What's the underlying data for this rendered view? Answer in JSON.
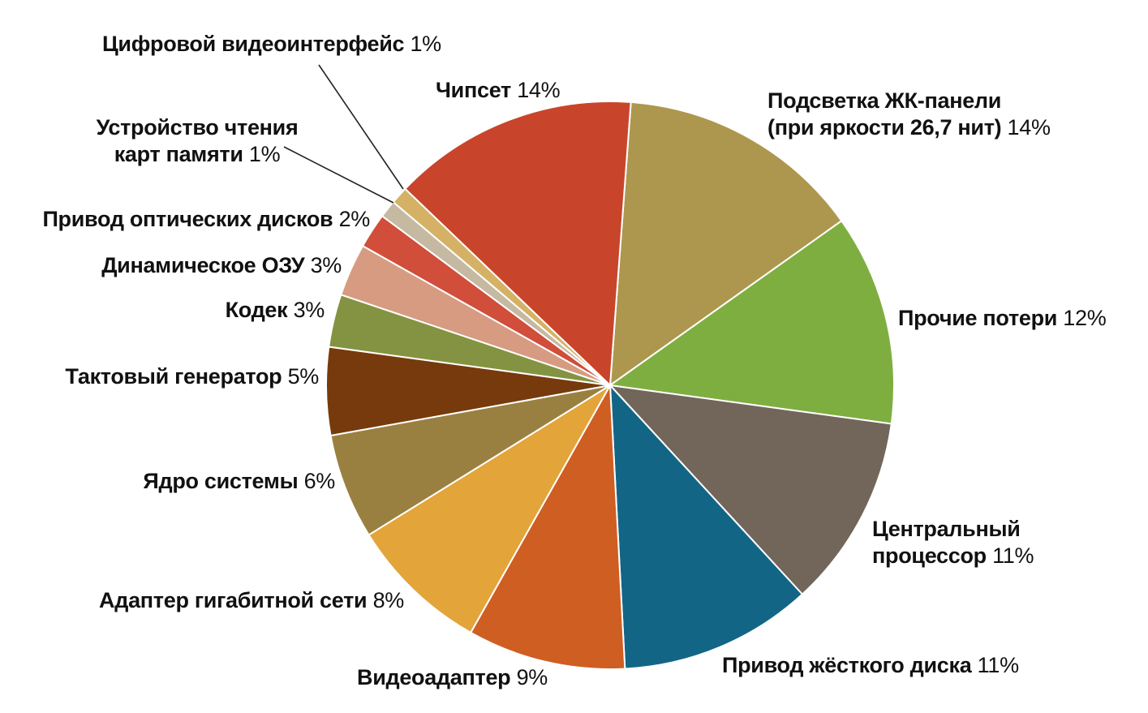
{
  "chart_data": {
    "type": "pie",
    "title": "",
    "start_angle_deg": 4.2,
    "direction": "clockwise",
    "slices": [
      {
        "name": "Подсветка ЖК-панели (при яркости 26,7 нит)",
        "lines": [
          "Подсветка ЖК-панели",
          "(при яркости 26,7 нит)"
        ],
        "value": 14,
        "label": "14%",
        "color": "#ad974e"
      },
      {
        "name": "Прочие потери",
        "lines": [
          "Прочие потери"
        ],
        "value": 12,
        "label": "12%",
        "color": "#7fae40"
      },
      {
        "name": "Центральный процессор",
        "lines": [
          "Центральный",
          "процессор"
        ],
        "value": 11,
        "label": "11%",
        "color": "#72655a"
      },
      {
        "name": "Привод жёсткого диска",
        "lines": [
          "Привод жёсткого диска"
        ],
        "value": 11,
        "label": "11%",
        "color": "#136586"
      },
      {
        "name": "Видеоадаптер",
        "lines": [
          "Видеоадаптер"
        ],
        "value": 9,
        "label": "9%",
        "color": "#cf5e22"
      },
      {
        "name": "Адаптер гигабитной сети",
        "lines": [
          "Адаптер гигабитной сети"
        ],
        "value": 8,
        "label": "8%",
        "color": "#e3a43a"
      },
      {
        "name": "Ядро системы",
        "lines": [
          "Ядро системы"
        ],
        "value": 6,
        "label": "6%",
        "color": "#9a8040"
      },
      {
        "name": "Тактовый генератор",
        "lines": [
          "Тактовый генератор"
        ],
        "value": 5,
        "label": "5%",
        "color": "#773a0c"
      },
      {
        "name": "Кодек",
        "lines": [
          "Кодек"
        ],
        "value": 3,
        "label": "3%",
        "color": "#849342"
      },
      {
        "name": "Динамическое ОЗУ",
        "lines": [
          "Динамическое ОЗУ"
        ],
        "value": 3,
        "label": "3%",
        "color": "#d69b80"
      },
      {
        "name": "Привод оптических дисков",
        "lines": [
          "Привод оптических дисков"
        ],
        "value": 2,
        "label": "2%",
        "color": "#d04e3a"
      },
      {
        "name": "Устройство чтения карт памяти",
        "lines": [
          "Устройство чтения",
          "карт памяти"
        ],
        "value": 1,
        "label": "1%",
        "color": "#c5b9a2"
      },
      {
        "name": "Цифровой видеоинтерфейс",
        "lines": [
          "Цифровой видеоинтерфейс"
        ],
        "value": 1,
        "label": "1%",
        "color": "#d5b166"
      },
      {
        "name": "Чипсет",
        "lines": [
          "Чипсет"
        ],
        "value": 14,
        "label": "14%",
        "color": "#c8452b"
      }
    ]
  }
}
